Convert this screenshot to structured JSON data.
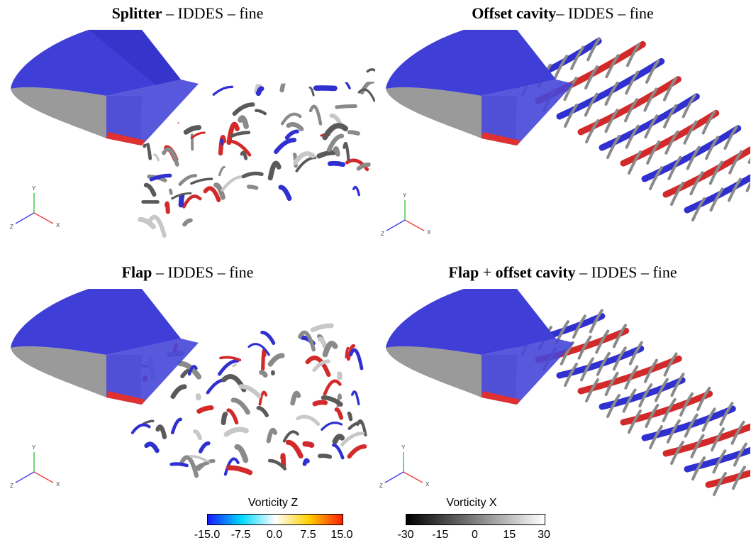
{
  "panels": [
    {
      "id": "splitter",
      "bold": "Splitter",
      "rest": " – IDDES –  fine",
      "axis_y": "Y",
      "axis_x": "X",
      "axis_z": "Z"
    },
    {
      "id": "offset-cavity",
      "bold": "Offset  cavity",
      "rest": "– IDDES –  fine",
      "axis_y": "Y",
      "axis_x": "X",
      "axis_z": "Z"
    },
    {
      "id": "flap",
      "bold": "Flap",
      "rest": " – IDDES –  fine",
      "axis_y": "Y",
      "axis_x": "X",
      "axis_z": "Z"
    },
    {
      "id": "flap-offset-cavity",
      "bold1": "Flap",
      "mid": " + ",
      "bold2": "offset cavity",
      "rest": " – IDDES – fine",
      "axis_y": "Y",
      "axis_x": "X",
      "axis_z": "Z"
    }
  ],
  "colorbars": {
    "vorticity_z": {
      "title": "Vorticity Z",
      "ticks": [
        "-15.0",
        "-7.5",
        "0.0",
        "7.5",
        "15.0"
      ],
      "colors": [
        "#1a1aff",
        "#00d8ff",
        "#ffffff",
        "#ffd000",
        "#ff2000"
      ]
    },
    "vorticity_x": {
      "title": "Vorticity X",
      "ticks": [
        "-30",
        "-15",
        "0",
        "15",
        "30"
      ],
      "colors": [
        "#000000",
        "#ffffff"
      ]
    }
  }
}
